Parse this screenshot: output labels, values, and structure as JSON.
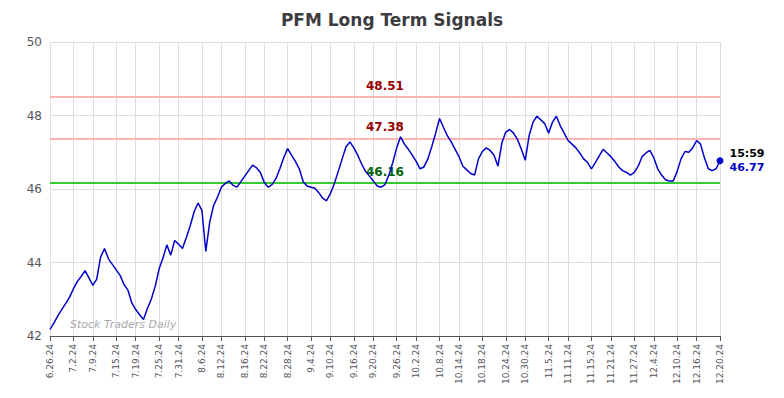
{
  "chart_data": {
    "type": "line",
    "title": "PFM Long Term Signals",
    "categories": [
      "6.26.24",
      null,
      null,
      null,
      null,
      null,
      "7.2.24",
      null,
      null,
      null,
      null,
      "7.9.24",
      null,
      null,
      null,
      null,
      null,
      "7.15.24",
      null,
      null,
      null,
      null,
      "7.19.24",
      null,
      null,
      null,
      null,
      null,
      "7.25.24",
      null,
      null,
      null,
      null,
      "7.31.24",
      null,
      null,
      null,
      null,
      null,
      "8.6.24",
      null,
      null,
      null,
      null,
      "8.12.24",
      null,
      null,
      null,
      null,
      null,
      "8.16.24",
      null,
      null,
      null,
      null,
      "8.22.24",
      null,
      null,
      null,
      null,
      null,
      "8.28.24",
      null,
      null,
      null,
      null,
      null,
      "9.4.24",
      null,
      null,
      null,
      null,
      "9.10.24",
      null,
      null,
      null,
      null,
      null,
      "9.16.24",
      null,
      null,
      null,
      null,
      "9.20.24",
      null,
      null,
      null,
      null,
      null,
      "9.26.24",
      null,
      null,
      null,
      null,
      "10.2.24",
      null,
      null,
      null,
      null,
      null,
      "10.8.24",
      null,
      null,
      null,
      null,
      "10.14.24",
      null,
      null,
      null,
      null,
      null,
      "10.18.24",
      null,
      null,
      null,
      null,
      null,
      "10.24.24",
      null,
      null,
      null,
      null,
      "10.30.24",
      null,
      null,
      null,
      null,
      null,
      "11.5.24",
      null,
      null,
      null,
      null,
      "11.11.24",
      null,
      null,
      null,
      null,
      null,
      "11.15.24",
      null,
      null,
      null,
      null,
      "11.21.24",
      null,
      null,
      null,
      null,
      null,
      "11.27.24",
      null,
      null,
      null,
      null,
      "12.4.24",
      null,
      null,
      null,
      null,
      null,
      "12.10.24",
      null,
      null,
      null,
      null,
      "12.16.24",
      null,
      null,
      null,
      null,
      null,
      "12.20.24"
    ],
    "values": [
      42.18,
      42.35,
      42.55,
      42.72,
      42.88,
      43.05,
      43.28,
      43.48,
      43.62,
      43.78,
      43.58,
      43.38,
      43.55,
      44.15,
      44.38,
      44.1,
      43.95,
      43.8,
      43.65,
      43.4,
      43.25,
      42.9,
      42.72,
      42.58,
      42.45,
      42.75,
      43.0,
      43.35,
      43.82,
      44.12,
      44.48,
      44.2,
      44.6,
      44.5,
      44.38,
      44.68,
      45.0,
      45.38,
      45.62,
      45.42,
      44.3,
      45.1,
      45.55,
      45.78,
      46.05,
      46.15,
      46.22,
      46.1,
      46.05,
      46.2,
      46.35,
      46.5,
      46.65,
      46.58,
      46.45,
      46.18,
      46.05,
      46.12,
      46.28,
      46.55,
      46.85,
      47.1,
      46.92,
      46.75,
      46.55,
      46.2,
      46.08,
      46.05,
      46.02,
      45.9,
      45.75,
      45.68,
      45.88,
      46.15,
      46.48,
      46.82,
      47.15,
      47.28,
      47.12,
      46.92,
      46.68,
      46.48,
      46.35,
      46.22,
      46.08,
      46.05,
      46.12,
      46.38,
      46.72,
      47.12,
      47.42,
      47.22,
      47.08,
      46.92,
      46.75,
      46.55,
      46.6,
      46.82,
      47.15,
      47.52,
      47.92,
      47.68,
      47.45,
      47.28,
      47.08,
      46.88,
      46.62,
      46.52,
      46.42,
      46.38,
      46.82,
      47.02,
      47.12,
      47.05,
      46.92,
      46.62,
      47.25,
      47.55,
      47.62,
      47.52,
      47.35,
      47.08,
      46.78,
      47.45,
      47.82,
      47.98,
      47.88,
      47.78,
      47.52,
      47.82,
      47.98,
      47.72,
      47.52,
      47.32,
      47.22,
      47.12,
      46.98,
      46.82,
      46.72,
      46.55,
      46.72,
      46.9,
      47.08,
      46.98,
      46.88,
      46.75,
      46.6,
      46.5,
      46.45,
      46.38,
      46.45,
      46.62,
      46.88,
      46.98,
      47.05,
      46.85,
      46.55,
      46.38,
      46.25,
      46.22,
      46.22,
      46.48,
      46.82,
      47.02,
      47.0,
      47.12,
      47.32,
      47.22,
      46.85,
      46.55,
      46.5,
      46.55,
      46.77
    ],
    "color": "#0000CC",
    "ylim": [
      42,
      50
    ],
    "yticks": [
      42,
      44,
      46,
      48,
      50
    ],
    "grid": true,
    "hlines": [
      {
        "y": 48.51,
        "color": "#ffb3b3",
        "label": "48.51",
        "text_color": "#990000"
      },
      {
        "y": 47.38,
        "color": "#ffb3b3",
        "label": "47.38",
        "text_color": "#990000"
      },
      {
        "y": 46.16,
        "color": "#33cc33",
        "label": "46.16",
        "text_color": "#006600"
      }
    ],
    "last_point": {
      "time": "15:59",
      "value": 46.77,
      "label": "46.77",
      "color": "#0000CC"
    },
    "watermark": "Stock Traders Daily",
    "watermark_color": "#aaaaaa"
  }
}
